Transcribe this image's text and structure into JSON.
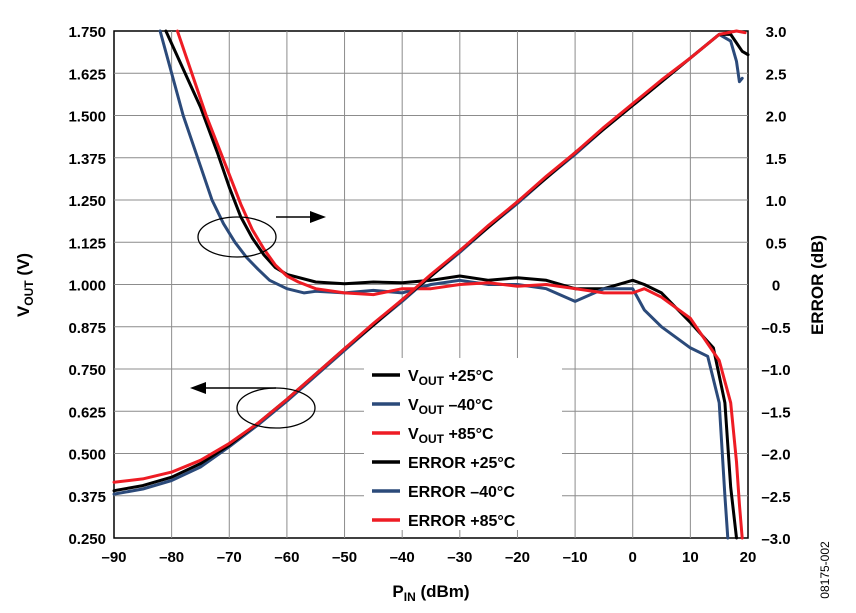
{
  "chart_data": {
    "type": "line",
    "xlabel": "P",
    "xlabel_sub": "IN",
    "xlabel_unit": " (dBm)",
    "ylabel": "V",
    "ylabel_sub": "OUT",
    "ylabel_unit": " (V)",
    "y2label": "ERROR (dB)",
    "xlim": [
      -90,
      20
    ],
    "ylim": [
      0.25,
      1.75
    ],
    "y2lim": [
      -3.0,
      3.0
    ],
    "grid": true,
    "legend_position": "bottom-center",
    "x_ticks": [
      "–90",
      "–80",
      "–70",
      "–60",
      "–50",
      "–40",
      "–30",
      "–20",
      "–10",
      "0",
      "10",
      "20"
    ],
    "y_ticks": [
      "0.250",
      "0.375",
      "0.500",
      "0.625",
      "0.750",
      "0.875",
      "1.000",
      "1.125",
      "1.250",
      "1.375",
      "1.500",
      "1.625",
      "1.750"
    ],
    "y2_ticks": [
      "–3.0",
      "–2.5",
      "–2.0",
      "–1.5",
      "–1.0",
      "–0.5",
      "0",
      "0.5",
      "1.0",
      "1.5",
      "2.0",
      "2.5",
      "3.0"
    ],
    "figure_code": "08175-002",
    "series": [
      {
        "name": "V_OUT +25°C",
        "name_base": "V",
        "name_sub": "OUT",
        "name_rest": " +25°C",
        "axis": "left",
        "color": "#000000",
        "x": [
          -90,
          -85,
          -80,
          -75,
          -70,
          -65,
          -60,
          -55,
          -50,
          -45,
          -40,
          -35,
          -30,
          -25,
          -20,
          -15,
          -10,
          -5,
          0,
          5,
          10,
          15,
          17,
          19,
          20
        ],
        "y": [
          0.39,
          0.405,
          0.43,
          0.47,
          0.525,
          0.59,
          0.66,
          0.735,
          0.81,
          0.88,
          0.955,
          1.025,
          1.1,
          1.17,
          1.245,
          1.315,
          1.39,
          1.46,
          1.53,
          1.6,
          1.67,
          1.74,
          1.74,
          1.69,
          1.68
        ]
      },
      {
        "name": "V_OUT –40°C",
        "name_base": "V",
        "name_sub": "OUT",
        "name_rest": " –40°C",
        "axis": "left",
        "color": "#2b4a7a",
        "x": [
          -90,
          -85,
          -80,
          -75,
          -70,
          -65,
          -60,
          -55,
          -50,
          -45,
          -40,
          -35,
          -30,
          -25,
          -20,
          -15,
          -10,
          -5,
          0,
          5,
          10,
          15,
          17,
          18,
          18.5,
          19
        ],
        "y": [
          0.38,
          0.395,
          0.42,
          0.46,
          0.52,
          0.585,
          0.655,
          0.73,
          0.805,
          0.88,
          0.95,
          1.025,
          1.095,
          1.17,
          1.24,
          1.315,
          1.385,
          1.46,
          1.53,
          1.6,
          1.67,
          1.74,
          1.72,
          1.66,
          1.6,
          1.61
        ]
      },
      {
        "name": "V_OUT +85°C",
        "name_base": "V",
        "name_sub": "OUT",
        "name_rest": " +85°C",
        "axis": "left",
        "color": "#ee1c24",
        "x": [
          -90,
          -85,
          -80,
          -75,
          -70,
          -65,
          -60,
          -55,
          -50,
          -45,
          -40,
          -35,
          -30,
          -25,
          -20,
          -15,
          -10,
          -5,
          0,
          5,
          10,
          15,
          18,
          19.5
        ],
        "y": [
          0.415,
          0.425,
          0.445,
          0.48,
          0.53,
          0.59,
          0.66,
          0.735,
          0.81,
          0.885,
          0.955,
          1.03,
          1.1,
          1.175,
          1.245,
          1.32,
          1.39,
          1.465,
          1.535,
          1.605,
          1.67,
          1.74,
          1.75,
          1.745
        ]
      },
      {
        "name": "ERROR +25°C",
        "axis": "right",
        "color": "#000000",
        "x": [
          -81,
          -75,
          -72,
          -70,
          -68,
          -66,
          -64,
          -62,
          -60,
          -55,
          -50,
          -45,
          -40,
          -35,
          -30,
          -25,
          -20,
          -15,
          -10,
          -5,
          0,
          2,
          5,
          10,
          14,
          16,
          17,
          18
        ],
        "y": [
          3.0,
          2.1,
          1.55,
          1.15,
          0.8,
          0.55,
          0.35,
          0.2,
          0.12,
          0.03,
          0.01,
          0.03,
          0.02,
          0.05,
          0.1,
          0.05,
          0.08,
          0.05,
          -0.05,
          -0.05,
          0.05,
          0.0,
          -0.1,
          -0.45,
          -0.75,
          -1.4,
          -2.4,
          -3.0
        ]
      },
      {
        "name": "ERROR –40°C",
        "axis": "right",
        "color": "#2b4a7a",
        "x": [
          -82,
          -78,
          -75,
          -73,
          -71,
          -69,
          -67,
          -65,
          -63,
          -60,
          -57,
          -55,
          -50,
          -45,
          -40,
          -35,
          -30,
          -25,
          -20,
          -15,
          -10,
          -5,
          0,
          2,
          5,
          10,
          13,
          15,
          16,
          16.5
        ],
        "y": [
          3.0,
          2.0,
          1.4,
          1.0,
          0.72,
          0.5,
          0.32,
          0.18,
          0.05,
          -0.05,
          -0.1,
          -0.08,
          -0.1,
          -0.07,
          -0.1,
          0.0,
          0.05,
          0.0,
          0.0,
          -0.05,
          -0.2,
          -0.05,
          -0.05,
          -0.3,
          -0.5,
          -0.75,
          -0.85,
          -1.4,
          -2.5,
          -3.0
        ]
      },
      {
        "name": "ERROR +85°C",
        "axis": "right",
        "color": "#ee1c24",
        "x": [
          -79,
          -74,
          -70,
          -68,
          -66,
          -64,
          -62,
          -60,
          -58,
          -55,
          -50,
          -45,
          -40,
          -35,
          -30,
          -25,
          -20,
          -15,
          -10,
          -5,
          0,
          2,
          5,
          10,
          15,
          17,
          18,
          18.5,
          19
        ],
        "y": [
          3.0,
          2.0,
          1.3,
          0.95,
          0.65,
          0.42,
          0.23,
          0.1,
          0.03,
          -0.05,
          -0.1,
          -0.12,
          -0.05,
          -0.05,
          0.0,
          0.02,
          -0.02,
          0.0,
          -0.05,
          -0.1,
          -0.1,
          -0.05,
          -0.15,
          -0.4,
          -0.9,
          -1.4,
          -2.1,
          -2.6,
          -3.0
        ]
      }
    ]
  }
}
